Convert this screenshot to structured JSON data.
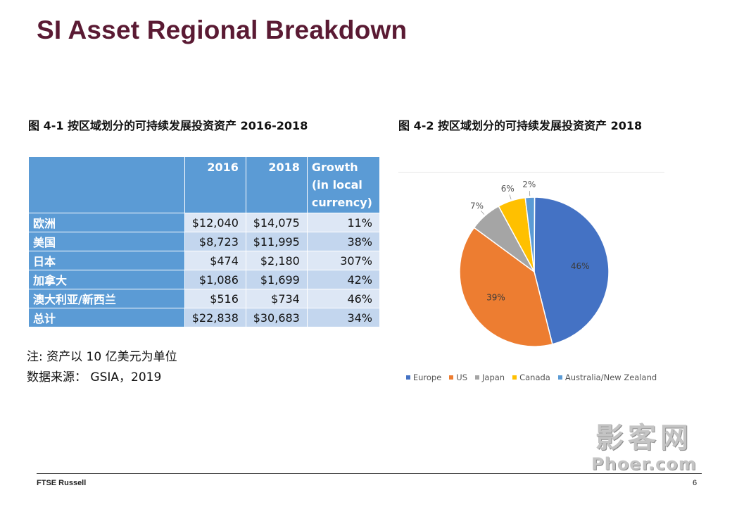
{
  "slide": {
    "title": "SI Asset Regional Breakdown"
  },
  "table_figure": {
    "caption": "图 4-1 按区域划分的可持续发展投资资产 2016-2018",
    "headers": [
      "",
      "2016",
      "2018",
      "Growth\n(in local\ncurrency)"
    ],
    "rows": [
      {
        "region": "欧洲",
        "y2016": "$12,040",
        "y2018": "$14,075",
        "growth": "11%"
      },
      {
        "region": "美国",
        "y2016": "$8,723",
        "y2018": "$11,995",
        "growth": "38%"
      },
      {
        "region": "日本",
        "y2016": "$474",
        "y2018": "$2,180",
        "growth": "307%"
      },
      {
        "region": "加拿大",
        "y2016": "$1,086",
        "y2018": "$1,699",
        "growth": "42%"
      },
      {
        "region": "澳大利亚/新西兰",
        "y2016": "$516",
        "y2018": "$734",
        "growth": "46%"
      },
      {
        "region": "总计",
        "y2016": "$22,838",
        "y2018": "$30,683",
        "growth": "34%"
      }
    ]
  },
  "notes": {
    "unit": "注: 资产以 10 亿美元为单位",
    "source": "数据来源： GSIA，2019"
  },
  "pie_figure": {
    "caption": "图 4-2 按区域划分的可持续发展投资资产 2018"
  },
  "chart_data": {
    "type": "pie",
    "title": "",
    "legend_position": "bottom",
    "categories": [
      "Europe",
      "US",
      "Japan",
      "Canada",
      "Australia/New Zealand"
    ],
    "values": [
      46,
      39,
      7,
      6,
      2
    ],
    "labels": [
      "46%",
      "39%",
      "7%",
      "6%",
      "2%"
    ],
    "colors": [
      "#4472c4",
      "#ed7d31",
      "#a5a5a5",
      "#ffc000",
      "#5b9bd5"
    ]
  },
  "footer": {
    "brand": "FTSE Russell",
    "page_number": "6"
  },
  "watermark": {
    "line1": "影客网",
    "line2": "Phoer.com"
  }
}
